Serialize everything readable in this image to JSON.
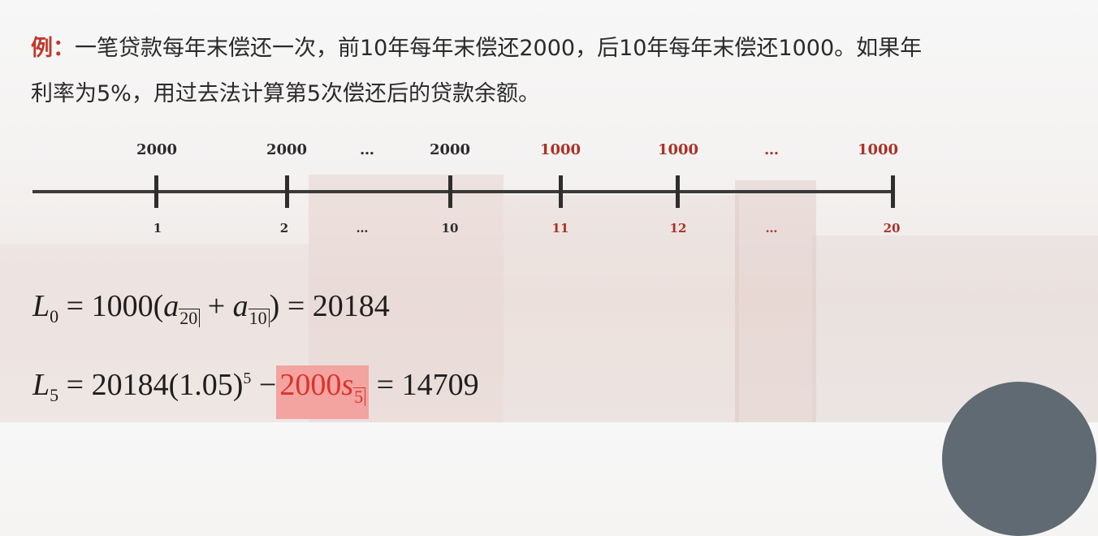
{
  "problem": {
    "label": "例：",
    "line1": "一笔贷款每年末偿还一次，前10年每年末偿还2000，后10年每年末偿还1000。如果年",
    "line2": "利率为5%，用过去法计算第5次偿还后的贷款余额。"
  },
  "timeline": {
    "payments": [
      "2000",
      "2000",
      "…",
      "2000",
      "1000",
      "1000",
      "…",
      "1000"
    ],
    "periods": [
      "1",
      "2",
      "…",
      "10",
      "11",
      "12",
      "…",
      "20"
    ],
    "colors": {
      "first_phase": "#2b2b2b",
      "second_phase": "#a93226"
    }
  },
  "formula1": {
    "lhs": "L",
    "lhs_sub": "0",
    "eq": "=",
    "coef": "1000(",
    "a1": "a",
    "a1_sub": "20",
    "plus": "+",
    "a2": "a",
    "a2_sub": "10",
    "close": ")",
    "eq2": "=",
    "result": "20184"
  },
  "formula2": {
    "lhs": "L",
    "lhs_sub": "5",
    "eq": "=",
    "base": "20184(1.05)",
    "exp": "5",
    "minus": "−",
    "hl_coef": "2000",
    "hl_s": "s",
    "hl_sub": "5",
    "eq2": "=",
    "result": "14709"
  },
  "colors": {
    "accent_red": "#c0392b",
    "highlight_bg": "#f3a3a0",
    "highlight_text": "#d8342c"
  }
}
